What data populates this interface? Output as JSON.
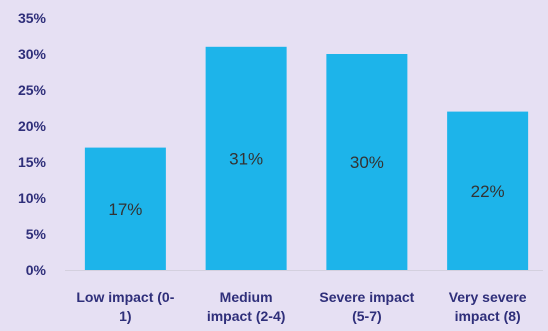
{
  "chart_data": {
    "type": "bar",
    "title": "",
    "xlabel": "",
    "ylabel": "",
    "categories": [
      [
        "Low impact (0-",
        "1)"
      ],
      [
        "Medium",
        "impact (2-4)"
      ],
      [
        "Severe impact",
        "(5-7)"
      ],
      [
        "Very severe",
        "impact (8)"
      ]
    ],
    "values": [
      17,
      31,
      30,
      22
    ],
    "data_labels": [
      "17%",
      "31%",
      "30%",
      "22%"
    ],
    "ylim": [
      0,
      35
    ],
    "yticks": [
      0,
      5,
      10,
      15,
      20,
      25,
      30,
      35
    ],
    "ytick_labels": [
      "0%",
      "5%",
      "10%",
      "15%",
      "20%",
      "25%",
      "30%",
      "35%"
    ],
    "grid": false,
    "legend": "none",
    "colors": {
      "bar": "#1db4ea",
      "background": "#e6e0f3",
      "tick_text": "#2f2f7a",
      "axis_line": "#d4d0de",
      "data_label": "#333333"
    }
  }
}
